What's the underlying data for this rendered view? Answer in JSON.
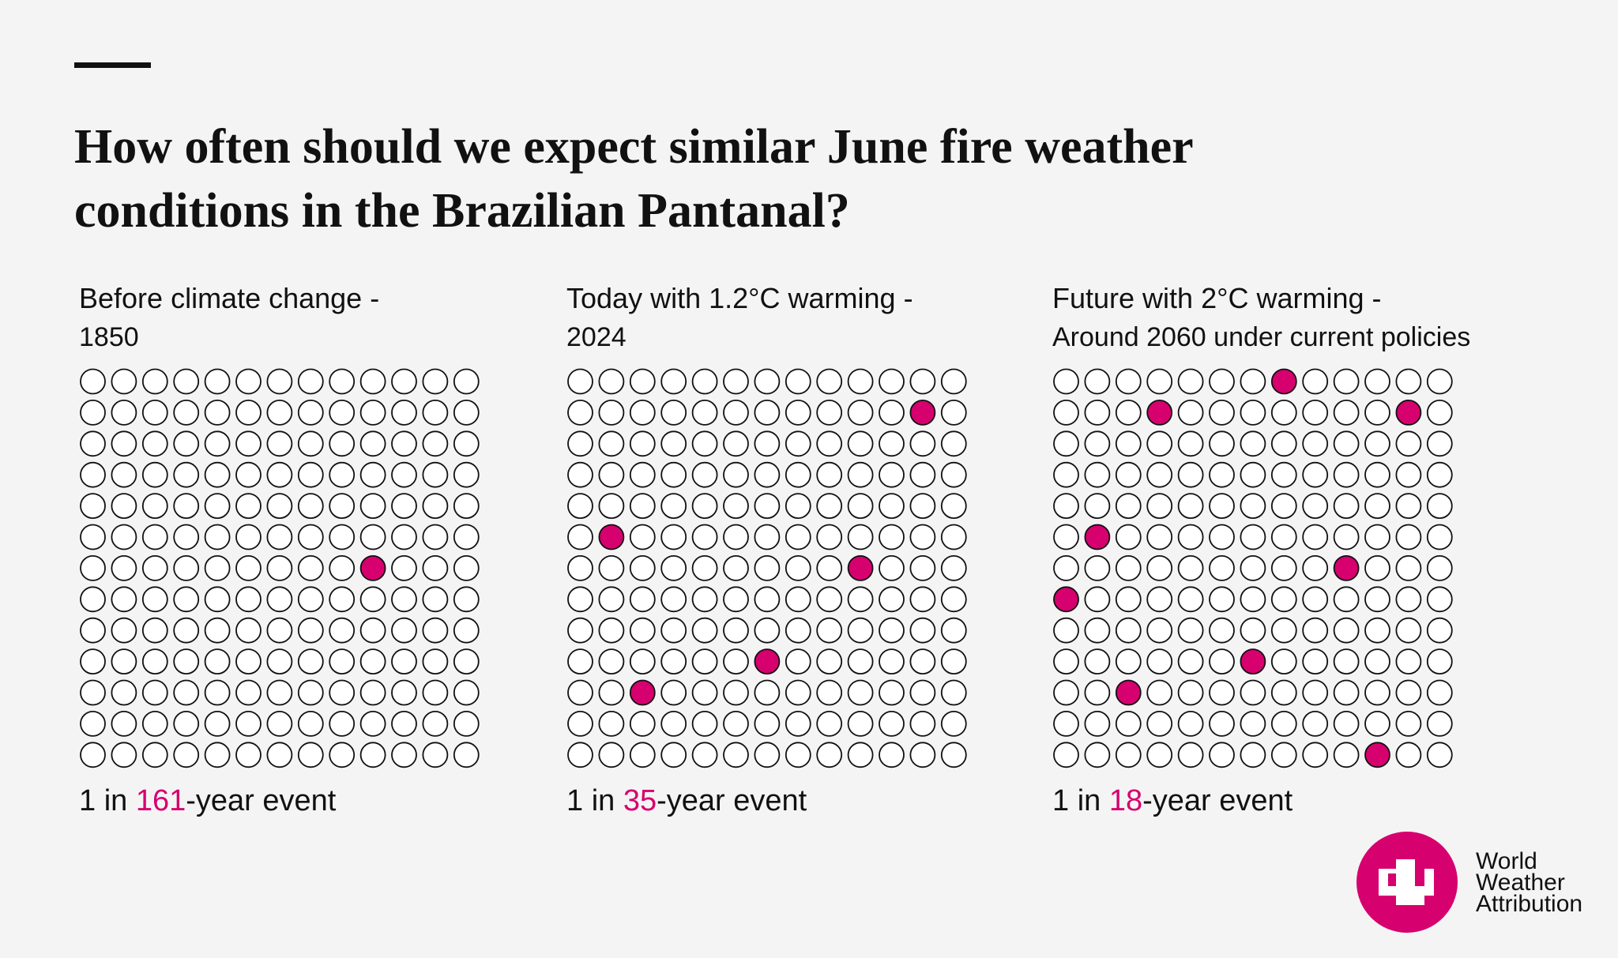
{
  "title_lines": [
    "How often should we expect similar June fire weather",
    "conditions in the Brazilian Pantanal?"
  ],
  "panels": [
    {
      "heading": "Before climate change -",
      "subheading": "1850",
      "prefix": "1 in ",
      "number": "161",
      "suffix": "-year event",
      "filled": [
        [
          6,
          9
        ]
      ]
    },
    {
      "heading": "Today with 1.2°C warming -",
      "subheading": "2024",
      "prefix": "1 in ",
      "number": "35",
      "suffix": "-year event",
      "filled": [
        [
          1,
          11
        ],
        [
          5,
          1
        ],
        [
          6,
          9
        ],
        [
          9,
          6
        ],
        [
          10,
          2
        ]
      ]
    },
    {
      "heading": "Future with 2°C warming -",
      "subheading": "Around 2060 under current policies",
      "prefix": "1 in ",
      "number": "18",
      "suffix": "-year event",
      "filled": [
        [
          0,
          7
        ],
        [
          1,
          3
        ],
        [
          1,
          11
        ],
        [
          5,
          1
        ],
        [
          6,
          9
        ],
        [
          7,
          0
        ],
        [
          9,
          6
        ],
        [
          10,
          2
        ],
        [
          12,
          10
        ]
      ]
    }
  ],
  "fill_color": "#d6006f",
  "logo": {
    "lines": [
      "World",
      "Weather",
      "Attribution"
    ]
  }
}
